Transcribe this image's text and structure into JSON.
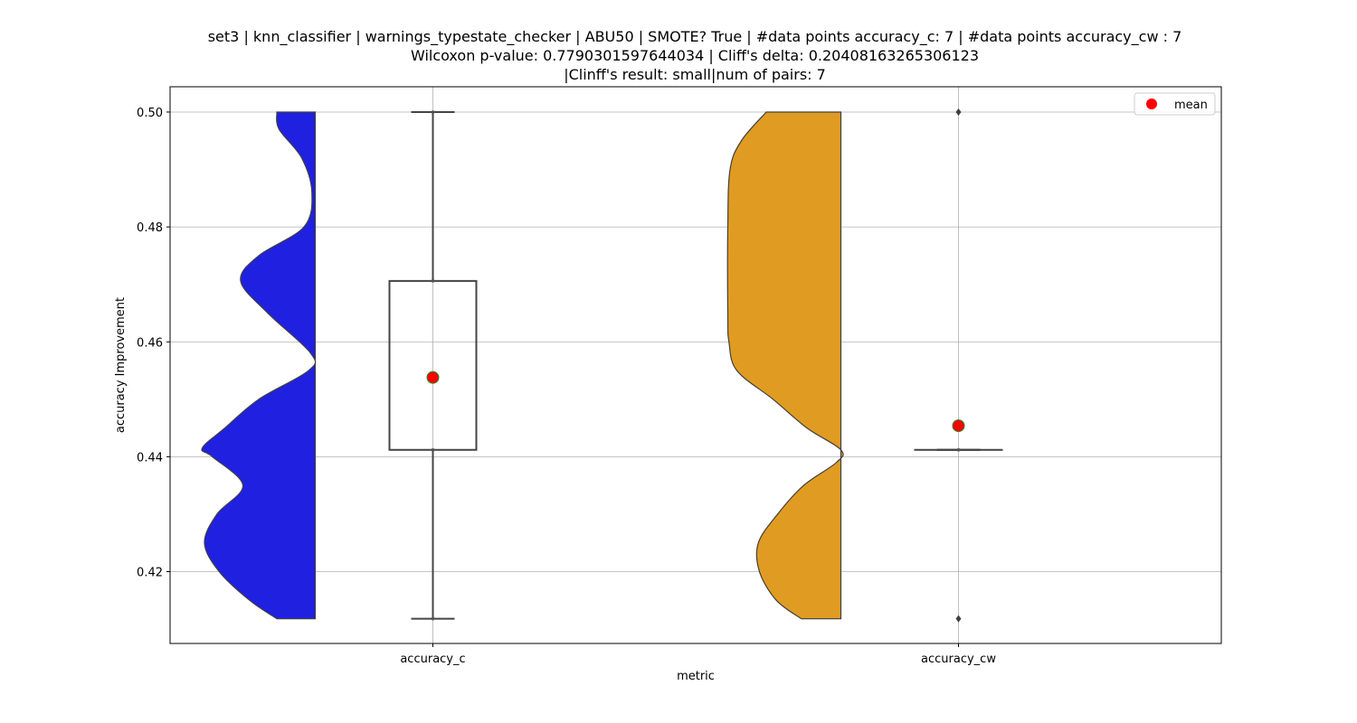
{
  "chart_data": {
    "type": "violin_box",
    "title_lines": [
      "set3 | knn_classifier | warnings_typestate_checker | ABU50 | SMOTE? True | #data points accuracy_c: 7 | #data points accuracy_cw : 7",
      "Wilcoxon p-value: 0.7790301597644034 | Cliff's delta: 0.20408163265306123",
      "|Clinff's result: small|num of pairs: 7"
    ],
    "xlabel": "metric",
    "ylabel": "accuracy Improvement",
    "categories": [
      "accuracy_c",
      "accuracy_cw"
    ],
    "ylim": [
      0.4075,
      0.5044
    ],
    "yticks": [
      0.42,
      0.44,
      0.46,
      0.48,
      0.5
    ],
    "ytick_labels": [
      "0.42",
      "0.44",
      "0.46",
      "0.48",
      "0.50"
    ],
    "grid": true,
    "legend": {
      "placement": "top-right",
      "entries": [
        {
          "label": "mean",
          "color": "#ff0000"
        }
      ]
    },
    "series": [
      {
        "category": "accuracy_c",
        "violin_color": "#2020e0",
        "violin_density": [
          [
            0.4118,
            0.34
          ],
          [
            0.415,
            0.58
          ],
          [
            0.42,
            0.85
          ],
          [
            0.425,
            0.98
          ],
          [
            0.43,
            0.87
          ],
          [
            0.435,
            0.64
          ],
          [
            0.44,
            0.91
          ],
          [
            0.4415,
            1.0
          ],
          [
            0.445,
            0.8
          ],
          [
            0.45,
            0.5
          ],
          [
            0.455,
            0.06
          ],
          [
            0.458,
            0.04
          ],
          [
            0.465,
            0.42
          ],
          [
            0.4706,
            0.66
          ],
          [
            0.475,
            0.5
          ],
          [
            0.48,
            0.1
          ],
          [
            0.486,
            0.03
          ],
          [
            0.492,
            0.12
          ],
          [
            0.497,
            0.32
          ],
          [
            0.5,
            0.34
          ]
        ],
        "box": {
          "whisker_low": 0.4118,
          "q1": 0.4412,
          "q3": 0.4706,
          "whisker_high": 0.5
        },
        "points": [
          0.4118,
          0.4412,
          0.4706,
          0.5
        ],
        "outliers": [],
        "mean": 0.4538
      },
      {
        "category": "accuracy_cw",
        "violin_color": "#e09c22",
        "violin_density": [
          [
            0.4118,
            0.35
          ],
          [
            0.415,
            0.57
          ],
          [
            0.42,
            0.72
          ],
          [
            0.425,
            0.73
          ],
          [
            0.43,
            0.56
          ],
          [
            0.435,
            0.33
          ],
          [
            0.439,
            0.04
          ],
          [
            0.4412,
            0.0
          ],
          [
            0.445,
            0.3
          ],
          [
            0.45,
            0.6
          ],
          [
            0.455,
            0.92
          ],
          [
            0.46,
            0.99
          ],
          [
            0.465,
            1.0
          ],
          [
            0.48,
            1.0
          ],
          [
            0.49,
            0.98
          ],
          [
            0.495,
            0.88
          ],
          [
            0.5,
            0.66
          ]
        ],
        "box": {
          "whisker_low": 0.4412,
          "q1": 0.4412,
          "q3": 0.4412,
          "whisker_high": 0.4412
        },
        "points": [
          0.4412
        ],
        "outliers": [
          0.4118,
          0.5
        ],
        "mean": 0.4454
      }
    ]
  }
}
